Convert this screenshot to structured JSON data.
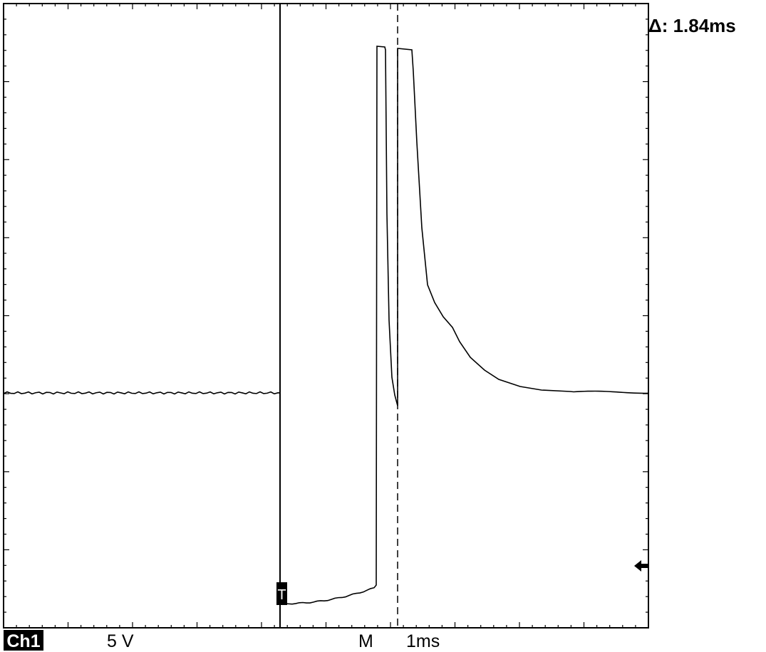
{
  "readout": {
    "delta": "Δ: 1.84ms"
  },
  "status": {
    "channel": "Ch1",
    "scale": "5 V",
    "timebase_label": "M",
    "timebase": "1ms"
  },
  "trigger_marker": "T"
}
